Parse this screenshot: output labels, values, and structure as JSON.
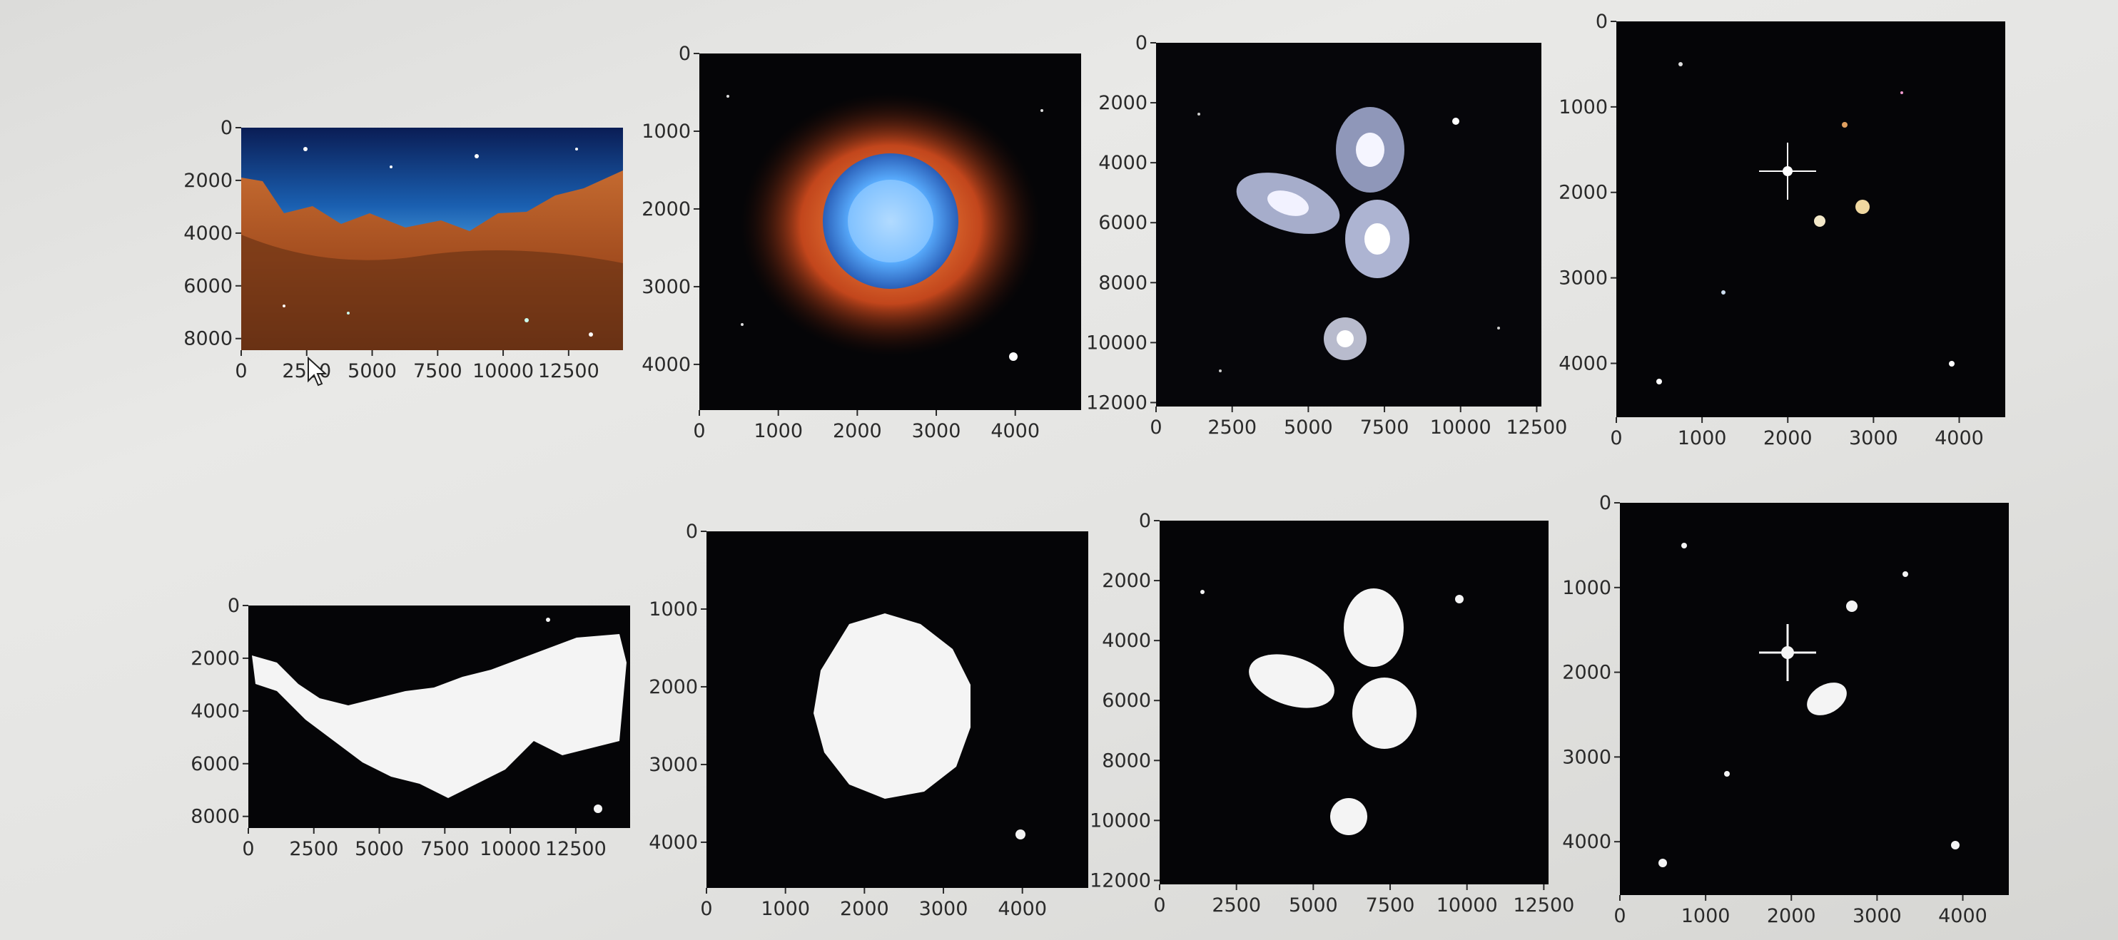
{
  "chart_data": [
    {
      "type": "image",
      "panel": "color-cliffs",
      "image_content": "nebula-cliffs-color",
      "xticks": [
        "0",
        "2500",
        "5000",
        "7500",
        "10000",
        "12500"
      ],
      "yticks": [
        "0",
        "2000",
        "4000",
        "6000",
        "8000"
      ],
      "xlim": [
        0,
        14575
      ],
      "ylim": [
        8441,
        0
      ]
    },
    {
      "type": "image",
      "panel": "color-ring-nebula",
      "image_content": "ring-nebula-color",
      "xticks": [
        "0",
        "1000",
        "2000",
        "3000",
        "4000"
      ],
      "yticks": [
        "0",
        "1000",
        "2000",
        "3000",
        "4000"
      ],
      "xlim": [
        0,
        4834
      ],
      "ylim": [
        4588,
        0
      ]
    },
    {
      "type": "image",
      "panel": "color-galaxy-quintet",
      "image_content": "galaxy-quintet-color",
      "xticks": [
        "0",
        "2500",
        "5000",
        "7500",
        "10000",
        "12500"
      ],
      "yticks": [
        "0",
        "2000",
        "4000",
        "6000",
        "8000",
        "10000",
        "12000"
      ],
      "xlim": [
        0,
        12654
      ],
      "ylim": [
        12132,
        0
      ]
    },
    {
      "type": "image",
      "panel": "color-deep-field",
      "image_content": "deep-field-color",
      "xticks": [
        "0",
        "1000",
        "2000",
        "3000",
        "4000"
      ],
      "yticks": [
        "0",
        "1000",
        "2000",
        "3000",
        "4000"
      ],
      "xlim": [
        0,
        4537
      ],
      "ylim": [
        4630,
        0
      ]
    },
    {
      "type": "image",
      "panel": "mask-cliffs",
      "image_content": "nebula-cliffs-binary-mask",
      "xticks": [
        "0",
        "2500",
        "5000",
        "7500",
        "10000",
        "12500"
      ],
      "yticks": [
        "0",
        "2000",
        "4000",
        "6000",
        "8000"
      ],
      "xlim": [
        0,
        14575
      ],
      "ylim": [
        8441,
        0
      ]
    },
    {
      "type": "image",
      "panel": "mask-ring-nebula",
      "image_content": "ring-nebula-binary-mask",
      "xticks": [
        "0",
        "1000",
        "2000",
        "3000",
        "4000"
      ],
      "yticks": [
        "0",
        "1000",
        "2000",
        "3000",
        "4000"
      ],
      "xlim": [
        0,
        4834
      ],
      "ylim": [
        4588,
        0
      ]
    },
    {
      "type": "image",
      "panel": "mask-galaxy-quintet",
      "image_content": "galaxy-quintet-binary-mask",
      "xticks": [
        "0",
        "2500",
        "5000",
        "7500",
        "10000",
        "12500"
      ],
      "yticks": [
        "0",
        "2000",
        "4000",
        "6000",
        "8000",
        "10000",
        "12000"
      ],
      "xlim": [
        0,
        12654
      ],
      "ylim": [
        12132,
        0
      ]
    },
    {
      "type": "image",
      "panel": "mask-deep-field",
      "image_content": "deep-field-binary-mask",
      "xticks": [
        "0",
        "1000",
        "2000",
        "3000",
        "4000"
      ],
      "yticks": [
        "0",
        "1000",
        "2000",
        "3000",
        "4000"
      ],
      "xlim": [
        0,
        4537
      ],
      "ylim": [
        4630,
        0
      ]
    }
  ],
  "colors": {
    "axis": "#2a2a2a",
    "image_background": "#050507",
    "mask_foreground": "#f4f4f4"
  },
  "cursor_icon": "mouse-pointer-icon"
}
